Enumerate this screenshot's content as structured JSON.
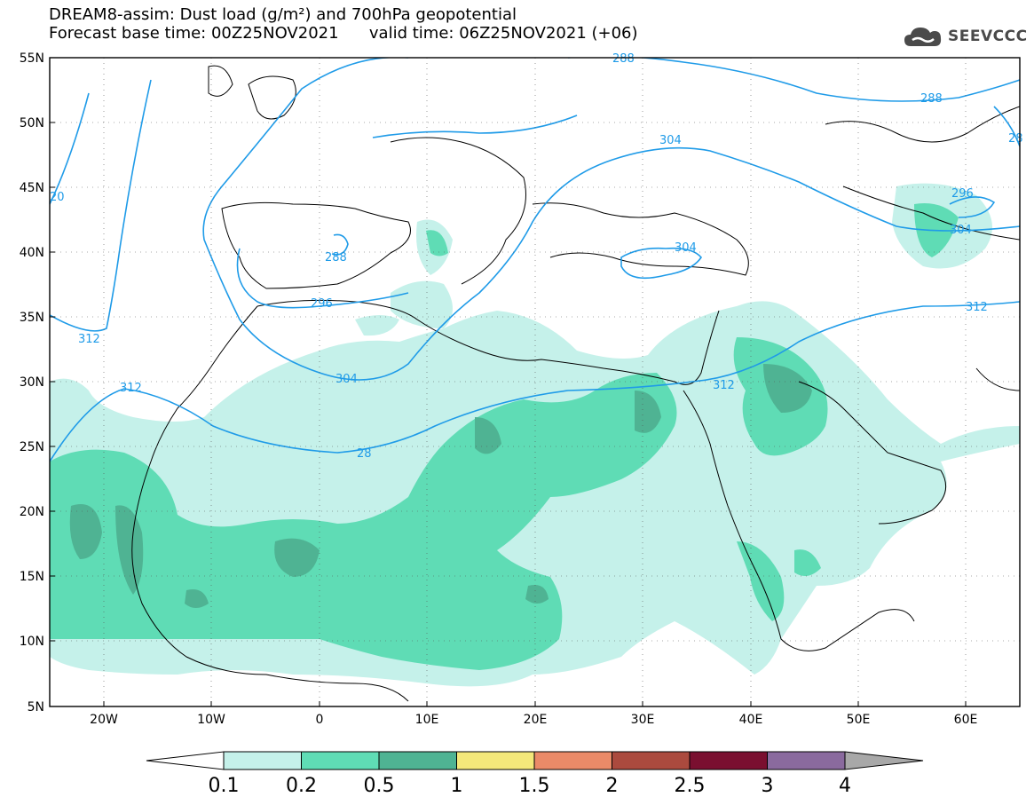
{
  "header": {
    "line1": "DREAM8-assim: Dust load (g/m²) and 700hPa geopotential",
    "line2_left": "Forecast base time: 00Z25NOV2021",
    "line2_right": "valid time: 06Z25NOV2021 (+06)"
  },
  "logo": {
    "text": "SEEVCCC",
    "icon": "cloud-logo-icon"
  },
  "map": {
    "lat_labels": [
      "55N",
      "50N",
      "45N",
      "40N",
      "35N",
      "30N",
      "25N",
      "20N",
      "15N",
      "10N",
      "5N"
    ],
    "lon_labels": [
      "20W",
      "10W",
      "0",
      "10E",
      "20E",
      "30E",
      "40E",
      "50E",
      "60E"
    ],
    "contour_labels": [
      "288",
      "304",
      "288",
      "28",
      "296",
      "304",
      "288",
      "296",
      "304",
      "312",
      "304",
      "312",
      "312",
      "312",
      "20",
      "296"
    ],
    "colors": {
      "contour": "#1f9be8",
      "dust_0_1": "#c5f1ea",
      "dust_0_2": "#5fdcb5",
      "dust_0_5": "#4fb393",
      "border": "#000000"
    }
  },
  "colorbar": {
    "labels": [
      "0.1",
      "0.2",
      "0.5",
      "1",
      "1.5",
      "2",
      "2.5",
      "3",
      "4"
    ],
    "colors": [
      "#c5f1ea",
      "#5fdcb5",
      "#4fb393",
      "#f4e87a",
      "#ea8a68",
      "#ab4a3e",
      "#7a0f30",
      "#8a6a9e"
    ],
    "under_color": "#ffffff",
    "over_color": "#a8a8a8"
  }
}
